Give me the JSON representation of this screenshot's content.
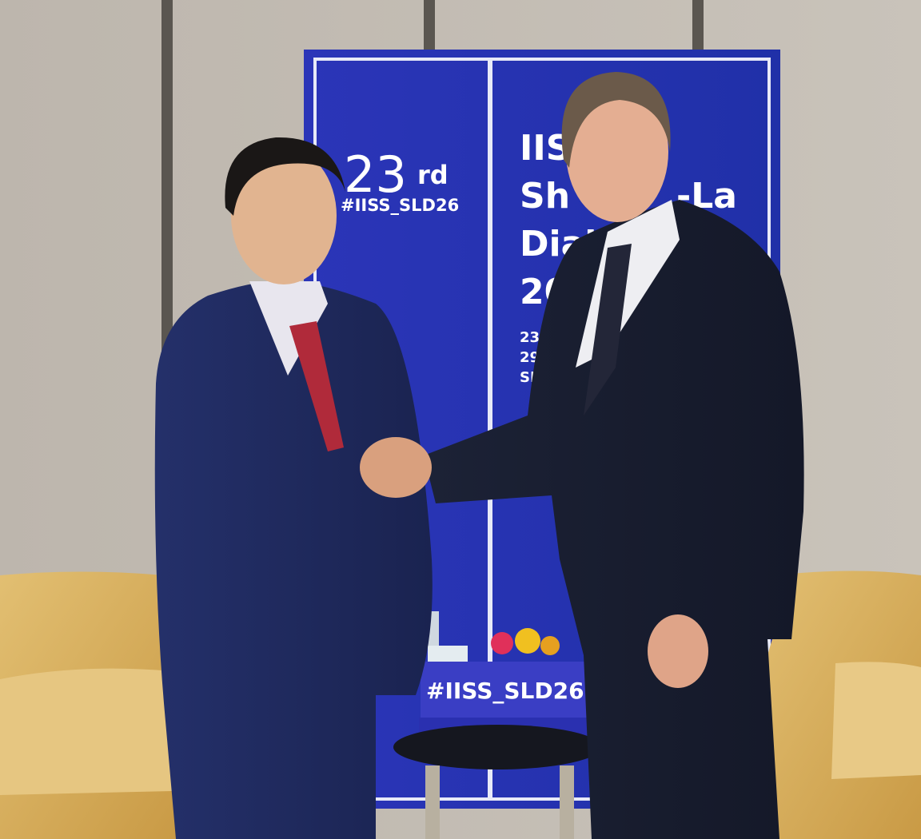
{
  "banner": {
    "edition": "23",
    "edition_suffix": "rd",
    "hashtag": "#IISS_SLD26",
    "title_fragments": [
      "IIS",
      "Sh",
      "-La",
      "Dial",
      "20"
    ],
    "detail_fragments": [
      "23",
      "29",
      "SI"
    ]
  },
  "table_sign": {
    "hashtag": "#IISS_SLD26"
  }
}
